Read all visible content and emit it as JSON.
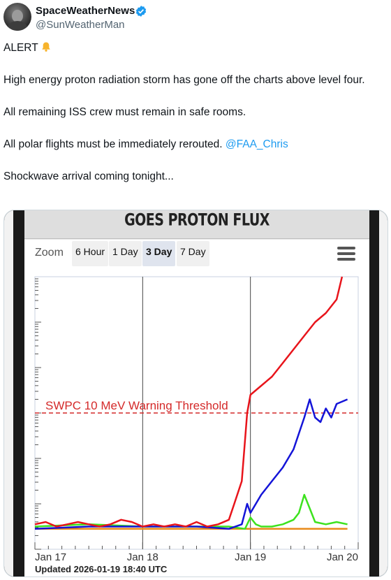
{
  "author": {
    "display_name": "SpaceWeatherNews",
    "handle": "@SunWeatherMan"
  },
  "more_menu": "···",
  "tweet": {
    "alert": "ALERT",
    "line1": "High energy proton radiation storm has gone off the charts above level four.",
    "line2": "All remaining ISS crew must remain in safe rooms.",
    "line3_prefix": "All polar flights must be immediately rerouted. ",
    "line3_mention": "@FAA_Chris",
    "line4": "Shockwave arrival coming tonight..."
  },
  "chart_panel": {
    "title": "GOES PROTON FLUX",
    "zoom_label": "Zoom",
    "zoom_buttons": [
      "6 Hour",
      "1 Day",
      "3 Day",
      "7 Day"
    ],
    "active_zoom": "3 Day",
    "updated": "Updated 2026-01-19 18:40 UTC"
  },
  "colors": {
    "verified": "#1d9bf0",
    "mention": "#1d9bf0",
    "series_red": "#e8141b",
    "series_blue": "#1414d8",
    "series_green": "#3de21e",
    "series_orange": "#e88a1a",
    "threshold": "#d42a2a"
  },
  "chart_data": {
    "type": "line",
    "x_tick_labels": [
      "Jan 17",
      "Jan 18",
      "Jan 19",
      "Jan 20"
    ],
    "xlim": [
      0,
      3
    ],
    "ylim": [
      0,
      6
    ],
    "y_scale": "log (pfu, decades)",
    "grid": "vertical lines at day boundaries",
    "threshold": {
      "label": "SWPC 10 MeV Warning Threshold",
      "y": 3
    },
    "series": [
      {
        "color": "red",
        "x": [
          0,
          0.1,
          0.2,
          0.3,
          0.4,
          0.5,
          0.6,
          0.7,
          0.8,
          0.9,
          1.0,
          1.1,
          1.2,
          1.3,
          1.4,
          1.5,
          1.6,
          1.7,
          1.8,
          1.85,
          1.92,
          1.97,
          2.0,
          2.05,
          2.1,
          2.2,
          2.3,
          2.4,
          2.5,
          2.6,
          2.7,
          2.8,
          2.85
        ],
        "y": [
          0.55,
          0.6,
          0.5,
          0.55,
          0.6,
          0.55,
          0.5,
          0.55,
          0.65,
          0.6,
          0.5,
          0.55,
          0.5,
          0.55,
          0.5,
          0.6,
          0.5,
          0.55,
          0.65,
          1.0,
          1.5,
          3.0,
          3.4,
          3.5,
          3.6,
          3.8,
          4.1,
          4.4,
          4.7,
          5.0,
          5.2,
          5.5,
          6.0
        ]
      },
      {
        "color": "blue",
        "x": [
          0,
          0.5,
          1.0,
          1.5,
          1.8,
          1.92,
          1.97,
          2.0,
          2.1,
          2.2,
          2.3,
          2.4,
          2.5,
          2.55,
          2.6,
          2.65,
          2.7,
          2.75,
          2.8,
          2.9
        ],
        "y": [
          0.45,
          0.5,
          0.5,
          0.5,
          0.45,
          0.55,
          1.0,
          0.8,
          1.2,
          1.5,
          1.8,
          2.2,
          2.9,
          3.3,
          2.9,
          2.8,
          3.1,
          2.9,
          3.2,
          3.3
        ]
      },
      {
        "color": "green",
        "x": [
          0,
          0.5,
          1.0,
          1.5,
          1.8,
          1.95,
          2.0,
          2.05,
          2.1,
          2.2,
          2.3,
          2.4,
          2.45,
          2.5,
          2.55,
          2.6,
          2.7,
          2.8,
          2.9
        ],
        "y": [
          0.5,
          0.55,
          0.5,
          0.5,
          0.5,
          0.45,
          0.7,
          0.55,
          0.5,
          0.5,
          0.55,
          0.65,
          0.8,
          1.2,
          0.9,
          0.6,
          0.55,
          0.6,
          0.55
        ]
      },
      {
        "color": "orange",
        "x": [
          0,
          0.5,
          1.0,
          1.5,
          2.0,
          2.5,
          2.9
        ],
        "y": [
          0.45,
          0.45,
          0.45,
          0.45,
          0.45,
          0.45,
          0.45
        ]
      }
    ]
  }
}
